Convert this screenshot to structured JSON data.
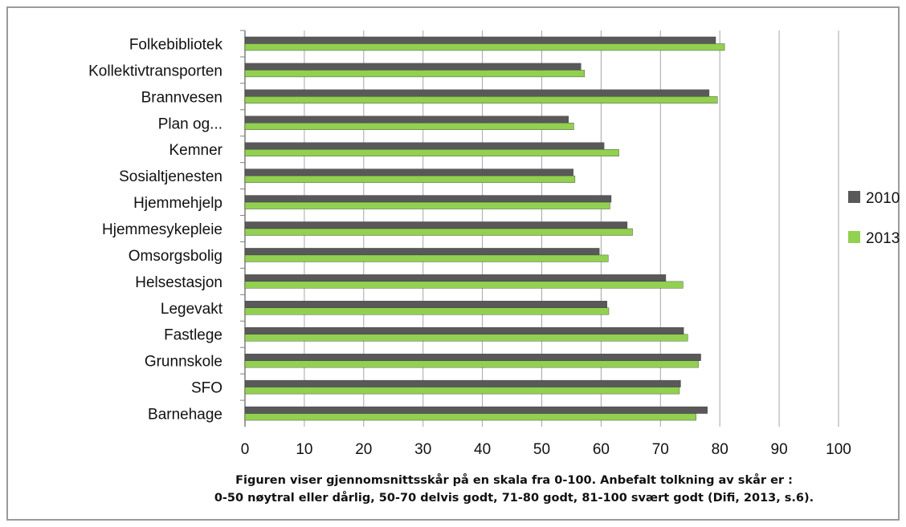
{
  "chart_data": {
    "type": "bar",
    "orientation": "horizontal",
    "categories": [
      "Folkebibliotek",
      "Kollektivtransporten",
      "Brannvesen",
      "Plan og...",
      "Kemner",
      "Sosialtjenesten",
      "Hjemmehjelp",
      "Hjemmesykepleie",
      "Omsorgsbolig",
      "Helsestasjon",
      "Legevakt",
      "Fastlege",
      "Grunnskole",
      "SFO",
      "Barnehage"
    ],
    "series": [
      {
        "name": "2010",
        "color": "#595959",
        "values": [
          79.3,
          56.6,
          78.2,
          54.5,
          60.5,
          55.3,
          61.7,
          64.4,
          59.7,
          70.9,
          61.0,
          73.9,
          76.8,
          73.4,
          77.9
        ]
      },
      {
        "name": "2013",
        "color": "#92d050",
        "values": [
          80.8,
          57.2,
          79.6,
          55.4,
          63.0,
          55.6,
          61.5,
          65.3,
          61.2,
          73.8,
          61.3,
          74.6,
          76.4,
          73.2,
          76.0
        ]
      }
    ],
    "xlim": [
      0,
      100
    ],
    "xticks": [
      0,
      10,
      20,
      30,
      40,
      50,
      60,
      70,
      80,
      90,
      100
    ],
    "grid": true,
    "legend_placement": "right",
    "caption_line1": "Figuren viser gjennomsnittsskår på en skala fra 0-100. Anbefalt tolkning av skår er :",
    "caption_line2": "0-50 nøytral eller dårlig, 50-70 delvis godt, 71-80 godt, 81-100 svært godt (Difi, 2013, s.6)."
  }
}
